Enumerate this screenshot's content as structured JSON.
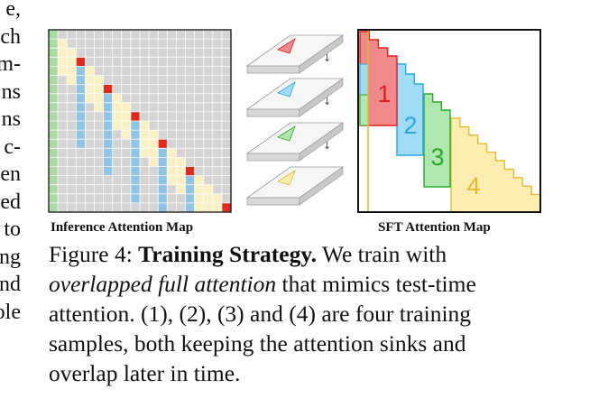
{
  "left_margin_fragments": [
    "e,",
    "ch",
    "m-",
    "ns",
    "ns",
    "c-",
    "en",
    "ed",
    "to",
    "ng",
    "nd",
    "ole"
  ],
  "figure": {
    "inference_label": "Inference Attention Map",
    "sft_label": "SFT Attention Map",
    "sample_numbers": [
      "1",
      "2",
      "3",
      "4"
    ],
    "colors": {
      "grid_bg": "#d4d4d4",
      "grid_line": "#ffffff",
      "sink_green": "#a8dca0",
      "window_yellow": "#fbf0c4",
      "query_blue": "#90c4e4",
      "diag_red": "#dd2a1e",
      "s1": "#f08a8a",
      "s1_line": "#e02020",
      "s2": "#a0dcf6",
      "s2_line": "#2aa6dc",
      "s3": "#b0e6b0",
      "s3_line": "#28a828",
      "s4": "#fbeeb0",
      "s4_line": "#e6b830"
    }
  },
  "caption": {
    "prefix": "Figure 4: ",
    "title": "Training Strategy.",
    "line1_rest": " We train with",
    "line2_italic": "overlapped full attention",
    "line2_rest": " that mimics test-time",
    "line3": "attention. (1), (2), (3) and (4) are four training",
    "line4": "samples, both keeping the attention sinks and",
    "line5": "overlap later in time."
  }
}
